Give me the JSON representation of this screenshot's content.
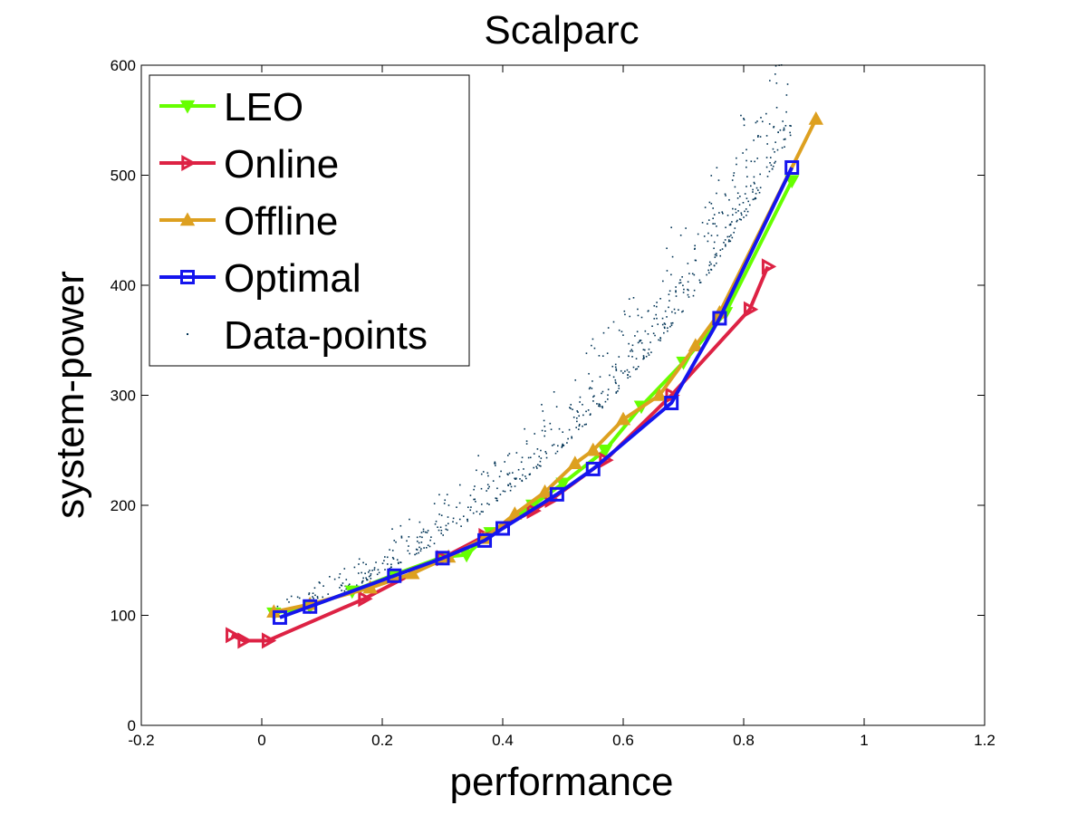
{
  "chart_data": {
    "type": "line",
    "title": "Scalparc",
    "xlabel": "performance",
    "ylabel": "system-power",
    "xlim": [
      -0.2,
      1.2
    ],
    "ylim": [
      0,
      600
    ],
    "xticks": [
      -0.2,
      0,
      0.2,
      0.4,
      0.6,
      0.8,
      1,
      1.2
    ],
    "xtick_labels": [
      "-0.2",
      "0",
      "0.2",
      "0.4",
      "0.6",
      "0.8",
      "1",
      "1.2"
    ],
    "yticks": [
      0,
      100,
      200,
      300,
      400,
      500,
      600
    ],
    "ytick_labels": [
      "0",
      "100",
      "200",
      "300",
      "400",
      "500",
      "600"
    ],
    "grid": false,
    "legend_position": "top-left",
    "series": [
      {
        "name": "LEO",
        "color": "#66ff00",
        "marker": "triangle-down",
        "x": [
          0.02,
          0.08,
          0.15,
          0.22,
          0.3,
          0.34,
          0.38,
          0.45,
          0.5,
          0.57,
          0.63,
          0.7,
          0.77,
          0.88
        ],
        "y": [
          102,
          108,
          122,
          137,
          153,
          155,
          175,
          200,
          220,
          250,
          290,
          330,
          375,
          495
        ]
      },
      {
        "name": "Online",
        "color": "#dd2244",
        "marker": "triangle-right",
        "x": [
          -0.05,
          -0.03,
          0.01,
          0.17,
          0.3,
          0.37,
          0.45,
          0.48,
          0.57,
          0.68,
          0.81,
          0.84
        ],
        "y": [
          82,
          77,
          77,
          115,
          152,
          172,
          195,
          205,
          241,
          300,
          378,
          417
        ]
      },
      {
        "name": "Offline",
        "color": "#dda020",
        "marker": "triangle-up",
        "x": [
          0.02,
          0.08,
          0.18,
          0.25,
          0.31,
          0.37,
          0.42,
          0.47,
          0.52,
          0.55,
          0.6,
          0.66,
          0.72,
          0.76,
          0.92
        ],
        "y": [
          103,
          110,
          125,
          138,
          153,
          170,
          192,
          212,
          238,
          250,
          278,
          300,
          345,
          375,
          551
        ]
      },
      {
        "name": "Optimal",
        "color": "#1515ee",
        "marker": "square",
        "x": [
          0.03,
          0.08,
          0.22,
          0.3,
          0.37,
          0.4,
          0.49,
          0.55,
          0.68,
          0.76,
          0.88
        ],
        "y": [
          98,
          108,
          136,
          152,
          168,
          179,
          210,
          233,
          293,
          370,
          507
        ]
      },
      {
        "name": "Data-points",
        "color": "#003355",
        "marker": "dot"
      }
    ]
  }
}
